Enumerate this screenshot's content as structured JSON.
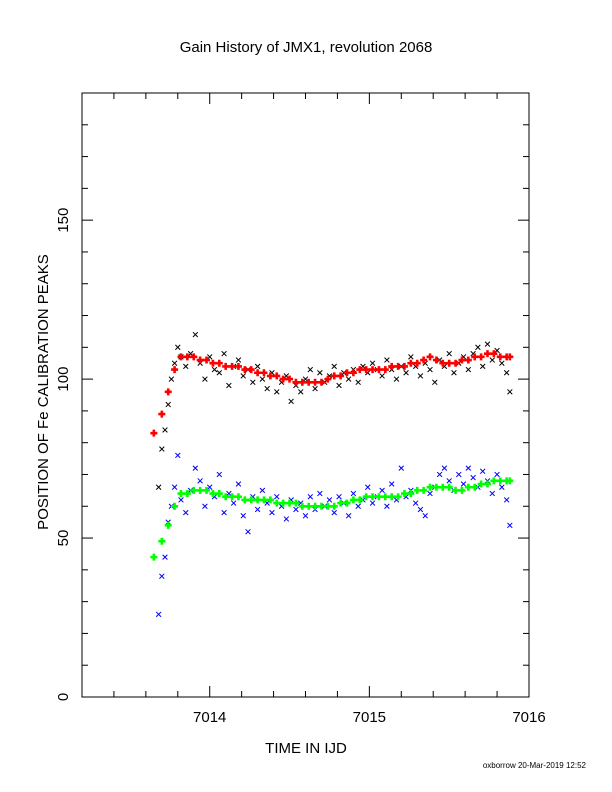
{
  "chart_data": {
    "type": "scatter",
    "title": "Gain History of JMX1, revolution 2068",
    "xlabel": "TIME IN IJD",
    "ylabel": "POSITION OF Fe CALIBRATION PEAKS",
    "xlim": [
      7013.2,
      7016.0
    ],
    "ylim": [
      0,
      190
    ],
    "x_ticks": [
      7014,
      7015,
      7016
    ],
    "y_ticks": [
      0,
      50,
      100,
      150
    ],
    "grid": false,
    "legend": "none",
    "series": [
      {
        "marker": "x",
        "color": "#000000",
        "x": [
          7013.68,
          7013.7,
          7013.72,
          7013.74,
          7013.76,
          7013.78,
          7013.8,
          7013.82,
          7013.85,
          7013.88,
          7013.91,
          7013.94,
          7013.97,
          7014.0,
          7014.03,
          7014.06,
          7014.09,
          7014.12,
          7014.15,
          7014.18,
          7014.21,
          7014.24,
          7014.27,
          7014.3,
          7014.33,
          7014.36,
          7014.39,
          7014.42,
          7014.45,
          7014.48,
          7014.51,
          7014.54,
          7014.57,
          7014.6,
          7014.63,
          7014.66,
          7014.69,
          7014.72,
          7014.75,
          7014.78,
          7014.81,
          7014.84,
          7014.87,
          7014.9,
          7014.93,
          7014.96,
          7014.99,
          7015.02,
          7015.05,
          7015.08,
          7015.11,
          7015.14,
          7015.17,
          7015.2,
          7015.23,
          7015.26,
          7015.29,
          7015.32,
          7015.35,
          7015.38,
          7015.41,
          7015.44,
          7015.47,
          7015.5,
          7015.53,
          7015.56,
          7015.59,
          7015.62,
          7015.65,
          7015.68,
          7015.71,
          7015.74,
          7015.77,
          7015.8,
          7015.83,
          7015.86,
          7015.88
        ],
        "y": [
          66,
          78,
          84,
          92,
          100,
          105,
          110,
          107,
          104,
          108,
          114,
          105,
          100,
          107,
          103,
          102,
          108,
          98,
          104,
          106,
          101,
          103,
          99,
          104,
          100,
          97,
          102,
          96,
          99,
          101,
          93,
          98,
          96,
          100,
          103,
          97,
          102,
          99,
          101,
          104,
          98,
          102,
          100,
          103,
          99,
          104,
          102,
          105,
          103,
          101,
          106,
          103,
          100,
          104,
          102,
          107,
          104,
          101,
          105,
          103,
          99,
          106,
          104,
          108,
          102,
          105,
          107,
          103,
          108,
          110,
          104,
          111,
          106,
          109,
          105,
          102,
          96
        ]
      },
      {
        "marker": "x",
        "color": "#0000ff",
        "x": [
          7013.68,
          7013.7,
          7013.72,
          7013.74,
          7013.76,
          7013.78,
          7013.8,
          7013.82,
          7013.85,
          7013.88,
          7013.91,
          7013.94,
          7013.97,
          7014.0,
          7014.03,
          7014.06,
          7014.09,
          7014.12,
          7014.15,
          7014.18,
          7014.21,
          7014.24,
          7014.27,
          7014.3,
          7014.33,
          7014.36,
          7014.39,
          7014.42,
          7014.45,
          7014.48,
          7014.51,
          7014.54,
          7014.57,
          7014.6,
          7014.63,
          7014.66,
          7014.69,
          7014.72,
          7014.75,
          7014.78,
          7014.81,
          7014.84,
          7014.87,
          7014.9,
          7014.93,
          7014.96,
          7014.99,
          7015.02,
          7015.05,
          7015.08,
          7015.11,
          7015.14,
          7015.17,
          7015.2,
          7015.23,
          7015.26,
          7015.29,
          7015.32,
          7015.35,
          7015.38,
          7015.41,
          7015.44,
          7015.47,
          7015.5,
          7015.53,
          7015.56,
          7015.59,
          7015.62,
          7015.65,
          7015.68,
          7015.71,
          7015.74,
          7015.77,
          7015.8,
          7015.83,
          7015.86,
          7015.88
        ],
        "y": [
          26,
          38,
          44,
          55,
          60,
          66,
          76,
          62,
          58,
          65,
          72,
          68,
          60,
          66,
          63,
          70,
          58,
          64,
          61,
          67,
          57,
          52,
          63,
          59,
          65,
          61,
          58,
          63,
          60,
          56,
          62,
          59,
          61,
          57,
          63,
          59,
          64,
          60,
          62,
          58,
          63,
          61,
          57,
          64,
          60,
          62,
          66,
          61,
          63,
          65,
          60,
          67,
          62,
          72,
          63,
          65,
          61,
          59,
          57,
          64,
          66,
          70,
          72,
          68,
          65,
          70,
          67,
          72,
          69,
          66,
          71,
          68,
          64,
          70,
          66,
          62,
          54
        ]
      },
      {
        "marker": "+",
        "color": "#ff0000",
        "x": [
          7013.65,
          7013.7,
          7013.74,
          7013.78,
          7013.82,
          7013.86,
          7013.9,
          7013.94,
          7013.98,
          7014.02,
          7014.06,
          7014.1,
          7014.14,
          7014.18,
          7014.22,
          7014.26,
          7014.3,
          7014.34,
          7014.38,
          7014.42,
          7014.46,
          7014.5,
          7014.54,
          7014.58,
          7014.62,
          7014.66,
          7014.7,
          7014.74,
          7014.78,
          7014.82,
          7014.86,
          7014.9,
          7014.94,
          7014.98,
          7015.02,
          7015.06,
          7015.1,
          7015.14,
          7015.18,
          7015.22,
          7015.26,
          7015.3,
          7015.34,
          7015.38,
          7015.42,
          7015.46,
          7015.5,
          7015.54,
          7015.58,
          7015.62,
          7015.66,
          7015.7,
          7015.74,
          7015.78,
          7015.82,
          7015.86,
          7015.88
        ],
        "y": [
          83,
          89,
          96,
          103,
          107,
          107,
          107,
          106,
          106,
          105,
          105,
          104,
          104,
          104,
          103,
          103,
          102,
          102,
          101,
          101,
          100,
          100,
          99,
          99,
          99,
          99,
          99,
          100,
          101,
          101,
          102,
          102,
          103,
          103,
          103,
          103,
          103,
          104,
          104,
          104,
          105,
          105,
          106,
          107,
          106,
          105,
          105,
          105,
          106,
          106,
          107,
          107,
          108,
          108,
          107,
          107,
          107
        ]
      },
      {
        "marker": "+",
        "color": "#00ff00",
        "x": [
          7013.65,
          7013.7,
          7013.74,
          7013.78,
          7013.82,
          7013.86,
          7013.9,
          7013.94,
          7013.98,
          7014.02,
          7014.06,
          7014.1,
          7014.14,
          7014.18,
          7014.22,
          7014.26,
          7014.3,
          7014.34,
          7014.38,
          7014.42,
          7014.46,
          7014.5,
          7014.54,
          7014.58,
          7014.62,
          7014.66,
          7014.7,
          7014.74,
          7014.78,
          7014.82,
          7014.86,
          7014.9,
          7014.94,
          7014.98,
          7015.02,
          7015.06,
          7015.1,
          7015.14,
          7015.18,
          7015.22,
          7015.26,
          7015.3,
          7015.34,
          7015.38,
          7015.42,
          7015.46,
          7015.5,
          7015.54,
          7015.58,
          7015.62,
          7015.66,
          7015.7,
          7015.74,
          7015.78,
          7015.82,
          7015.86,
          7015.88
        ],
        "y": [
          44,
          49,
          54,
          60,
          64,
          64,
          65,
          65,
          65,
          64,
          64,
          63,
          63,
          63,
          62,
          62,
          62,
          62,
          62,
          61,
          61,
          61,
          61,
          60,
          60,
          60,
          60,
          60,
          60,
          61,
          61,
          62,
          62,
          63,
          63,
          63,
          63,
          63,
          63,
          64,
          64,
          65,
          65,
          66,
          66,
          66,
          66,
          65,
          65,
          66,
          66,
          67,
          67,
          68,
          68,
          68,
          68
        ]
      }
    ]
  },
  "footer": "oxborrow 20-Mar-2019 12:52"
}
